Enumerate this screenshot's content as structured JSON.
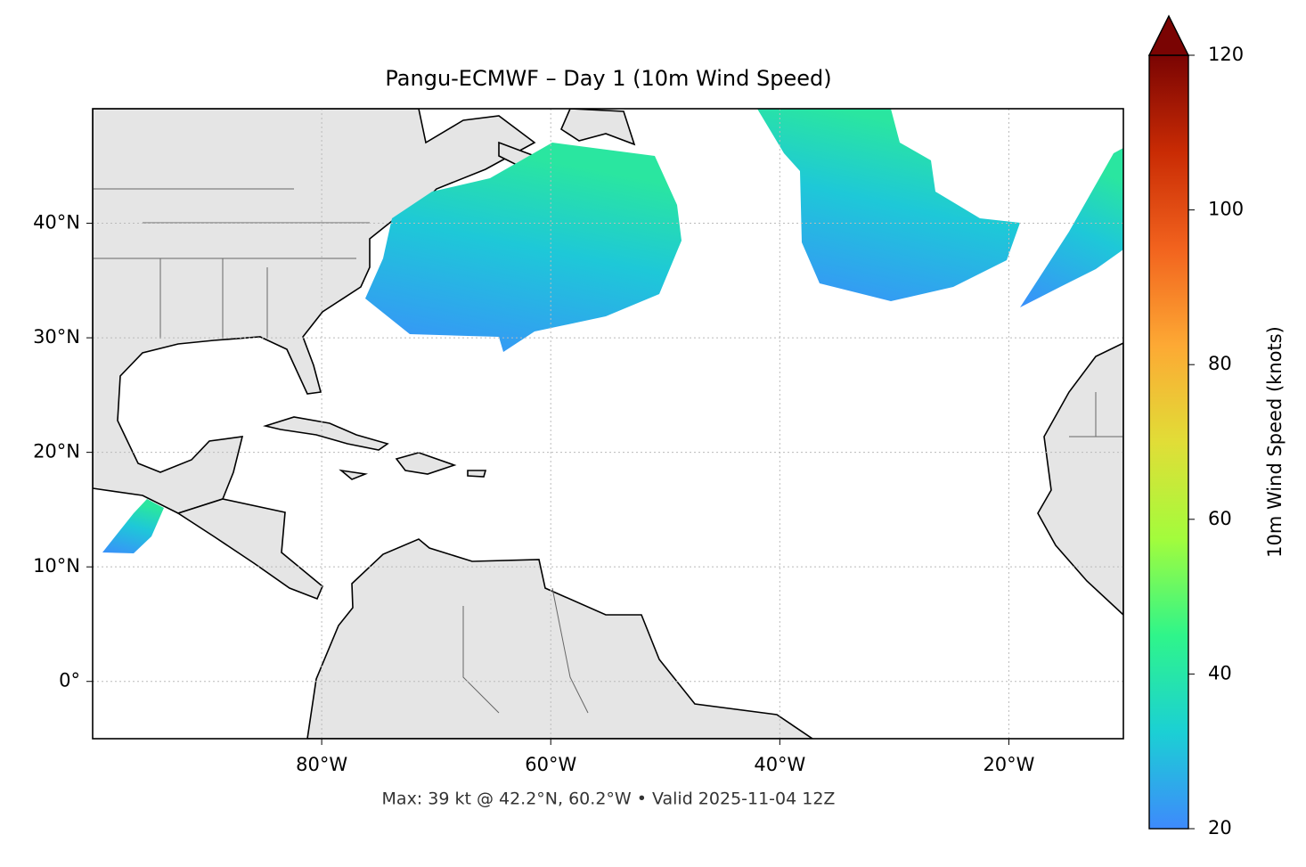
{
  "chart_data": {
    "type": "map",
    "title": "Pangu-ECMWF – Day 1 (10m Wind Speed)",
    "footnote": "Max: 39 kt @ 42.2°N, 60.2°W • Valid 2025-11-04 12Z",
    "xlim": [
      -100,
      -10
    ],
    "ylim": [
      -5,
      50
    ],
    "xticks": [
      {
        "value": -80,
        "label": "80°W"
      },
      {
        "value": -60,
        "label": "60°W"
      },
      {
        "value": -40,
        "label": "40°W"
      },
      {
        "value": -20,
        "label": "20°W"
      }
    ],
    "yticks": [
      {
        "value": 0,
        "label": "0°"
      },
      {
        "value": 10,
        "label": "10°N"
      },
      {
        "value": 20,
        "label": "20°N"
      },
      {
        "value": 30,
        "label": "30°N"
      },
      {
        "value": 40,
        "label": "40°N"
      }
    ],
    "grid": true,
    "colorbar": {
      "label": "10m Wind Speed (knots)",
      "clim": [
        20,
        120
      ],
      "ticks": [
        20,
        40,
        60,
        80,
        100,
        120
      ],
      "extend": "max",
      "colormap": [
        "#3e8afc",
        "#1bd0d4",
        "#2ff58a",
        "#a3fc3c",
        "#e1dd37",
        "#fda934",
        "#f2631e",
        "#c92b04",
        "#7a0403"
      ]
    }
  }
}
